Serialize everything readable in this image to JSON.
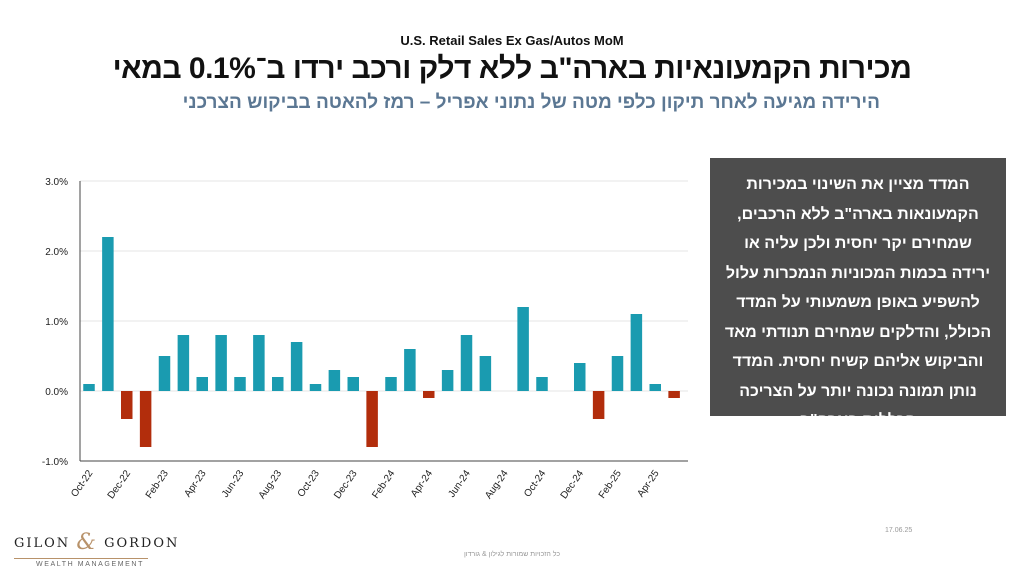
{
  "header": {
    "subtitle_en": "U.S. Retail Sales Ex Gas/Autos MoM",
    "title_he": "מכירות הקמעונאיות בארה\"ב ללא דלק ורכב ירדו ב־0.1% במאי",
    "subtitle_he": "הירידה מגיעה לאחר תיקון כלפי מטה של נתוני אפריל – רמז להאטה בביקוש הצרכני"
  },
  "info_box": {
    "text": "המדד מציין את השינוי במכירות הקמעונאות בארה\"ב ללא הרכבים, שמחירם יקר יחסית ולכן עליה או ירידה בכמות המכוניות הנמכרות עלול להשפיע באופן משמעותי על המדד הכולל, והדלקים שמחירם תנודתי מאד והביקוש אליהם קשיח יחסית. המדד נותן תמונה נכונה יותר על הצריכה הכללית בארה\"ב"
  },
  "logo": {
    "left": "GILON",
    "amp": "&",
    "right": "GORDON",
    "sub": "WEALTH MANAGEMENT"
  },
  "date": "17.06.25",
  "footer": "כל הזכויות שמורות לגילון & גורדון",
  "colors": {
    "positive": "#1a9bb0",
    "negative": "#b22d0c"
  },
  "chart_data": {
    "type": "bar",
    "x": [
      "Oct-22",
      "Nov-22",
      "Dec-22",
      "Jan-23",
      "Feb-23",
      "Mar-23",
      "Apr-23",
      "May-23",
      "Jun-23",
      "Jul-23",
      "Aug-23",
      "Sep-23",
      "Oct-23",
      "Nov-23",
      "Dec-23",
      "Jan-24",
      "Feb-24",
      "Mar-24",
      "Apr-24",
      "May-24",
      "Jun-24",
      "Jul-24",
      "Aug-24",
      "Sep-24",
      "Oct-24",
      "Nov-24",
      "Dec-24",
      "Jan-25",
      "Feb-25",
      "Mar-25",
      "Apr-25",
      "May-25"
    ],
    "values": [
      0.1,
      2.2,
      -0.4,
      -0.8,
      0.5,
      0.8,
      0.2,
      0.8,
      0.2,
      0.8,
      0.2,
      0.7,
      0.1,
      0.3,
      0.2,
      -0.8,
      0.2,
      0.6,
      -0.1,
      0.3,
      0.8,
      0.5,
      0.0,
      1.2,
      0.2,
      0.0,
      0.4,
      -0.4,
      0.5,
      1.1,
      0.1,
      -0.1
    ],
    "tick_labels": [
      "Oct-22",
      "Dec-22",
      "Feb-23",
      "Apr-23",
      "Jun-23",
      "Aug-23",
      "Oct-23",
      "Dec-23",
      "Feb-24",
      "Apr-24",
      "Jun-24",
      "Aug-24",
      "Oct-24",
      "Dec-24",
      "Feb-25",
      "Apr-25"
    ],
    "y_ticks": [
      "-1.0%",
      "0.0%",
      "1.0%",
      "2.0%",
      "3.0%"
    ],
    "ylim": [
      -1.0,
      3.0
    ],
    "grid": true
  }
}
